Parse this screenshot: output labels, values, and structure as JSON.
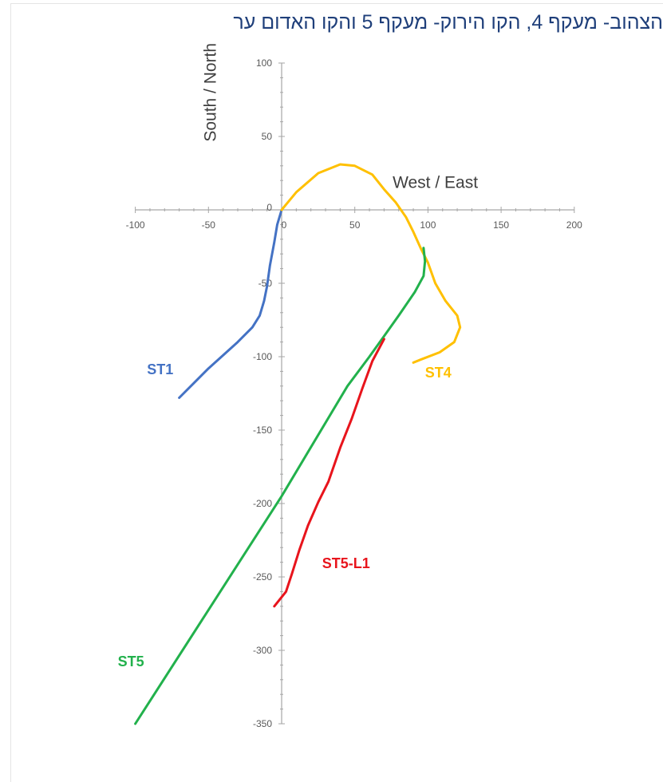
{
  "caption": "הצהוב- מעקף 4, הקו הירוק- מעקף 5 והקו האדום ער",
  "chart_data": {
    "type": "line",
    "xlabel": "West / East",
    "ylabel": "South / North",
    "xlim": [
      -100,
      200
    ],
    "ylim": [
      -350,
      100
    ],
    "xticks": [
      -100,
      -50,
      0,
      50,
      100,
      150,
      200
    ],
    "yticks": [
      100,
      50,
      0,
      -50,
      -100,
      -150,
      -200,
      -250,
      -300,
      -350
    ],
    "xtick_labels": [
      "-100",
      "-50",
      "0",
      "50",
      "100",
      "150",
      "200"
    ],
    "ytick_labels": [
      "100",
      "50",
      "0",
      "-50",
      "-100",
      "-150",
      "-200",
      "-250",
      "-300",
      "-350"
    ],
    "grid": false,
    "series": [
      {
        "name": "ST1",
        "color": "#4472c4",
        "points": [
          [
            0,
            0
          ],
          [
            -3,
            -10
          ],
          [
            -5,
            -22
          ],
          [
            -8,
            -38
          ],
          [
            -10,
            -52
          ],
          [
            -12,
            -62
          ],
          [
            -15,
            -72
          ],
          [
            -20,
            -80
          ],
          [
            -30,
            -90
          ],
          [
            -40,
            -99
          ],
          [
            -50,
            -108
          ],
          [
            -60,
            -118
          ],
          [
            -70,
            -128
          ]
        ]
      },
      {
        "name": "ST4",
        "color": "#ffc000",
        "points": [
          [
            0,
            0
          ],
          [
            10,
            12
          ],
          [
            25,
            25
          ],
          [
            40,
            31
          ],
          [
            50,
            30
          ],
          [
            62,
            24
          ],
          [
            70,
            14
          ],
          [
            78,
            5
          ],
          [
            85,
            -5
          ],
          [
            90,
            -15
          ],
          [
            95,
            -26
          ],
          [
            100,
            -36
          ],
          [
            105,
            -50
          ],
          [
            112,
            -62
          ],
          [
            120,
            -72
          ],
          [
            122,
            -80
          ],
          [
            118,
            -90
          ],
          [
            108,
            -97
          ],
          [
            95,
            -102
          ],
          [
            90,
            -104
          ]
        ]
      },
      {
        "name": "ST5",
        "color": "#22b14c",
        "points": [
          [
            97,
            -26
          ],
          [
            98,
            -35
          ],
          [
            97,
            -45
          ],
          [
            91,
            -56
          ],
          [
            80,
            -72
          ],
          [
            70,
            -86
          ],
          [
            60,
            -100
          ],
          [
            45,
            -120
          ],
          [
            0,
            -195
          ],
          [
            -100,
            -350
          ]
        ]
      },
      {
        "name": "ST5-L1",
        "color": "#e8141c",
        "points": [
          [
            70,
            -88
          ],
          [
            62,
            -103
          ],
          [
            55,
            -122
          ],
          [
            48,
            -142
          ],
          [
            40,
            -162
          ],
          [
            32,
            -185
          ],
          [
            25,
            -199
          ],
          [
            18,
            -215
          ],
          [
            12,
            -232
          ],
          [
            7,
            -248
          ],
          [
            3,
            -260
          ],
          [
            -5,
            -270
          ]
        ]
      }
    ],
    "annotations": [
      {
        "text": "ST1",
        "color": "#4472c4",
        "x": -83,
        "y": -112
      },
      {
        "text": "ST4",
        "color": "#ffc000",
        "x": 107,
        "y": -114
      },
      {
        "text": "ST5",
        "color": "#22b14c",
        "x": -103,
        "y": -311
      },
      {
        "text": "ST5-L1",
        "color": "#e8141c",
        "x": 44,
        "y": -244
      }
    ]
  }
}
